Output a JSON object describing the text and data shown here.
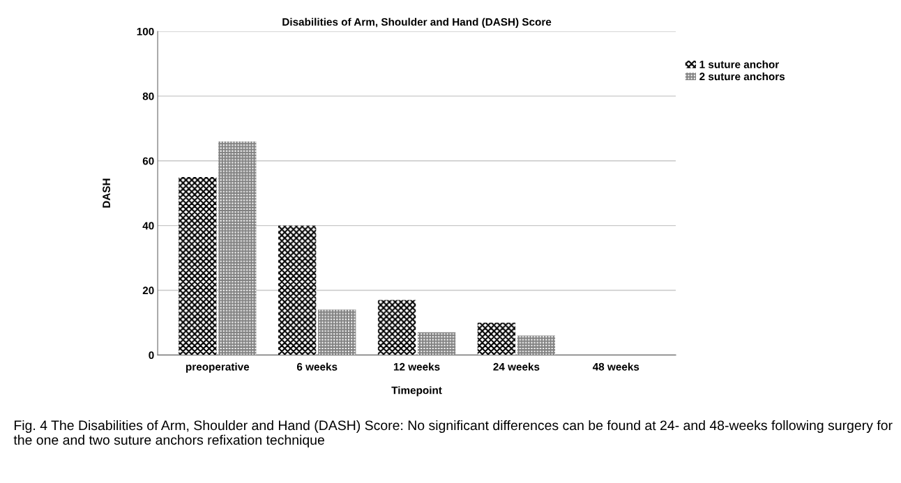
{
  "chart_data": {
    "type": "bar",
    "title": "Disabilities of Arm, Shoulder and Hand (DASH) Score",
    "xlabel": "Timepoint",
    "ylabel": "DASH",
    "categories": [
      "preoperative",
      "6 weeks",
      "12 weeks",
      "24 weeks",
      "48 weeks"
    ],
    "series": [
      {
        "name": "1 suture anchor",
        "color": "#000000",
        "values": [
          55,
          40,
          17,
          10,
          0
        ]
      },
      {
        "name": "2 suture anchors",
        "color": "#808080",
        "values": [
          66,
          14,
          7,
          6,
          0
        ]
      }
    ],
    "ylim": [
      0,
      100
    ],
    "yticks": [
      0,
      20,
      40,
      60,
      80,
      100
    ],
    "grid": "y",
    "legend": "top right",
    "annotations": [
      "Fig. 4 The Disabilities of Arm, Shoulder and Hand (DASH) Score: No significant differences can be found at 24- and 48-weeks following surgery for the one and two suture anchors refixation technique"
    ]
  }
}
